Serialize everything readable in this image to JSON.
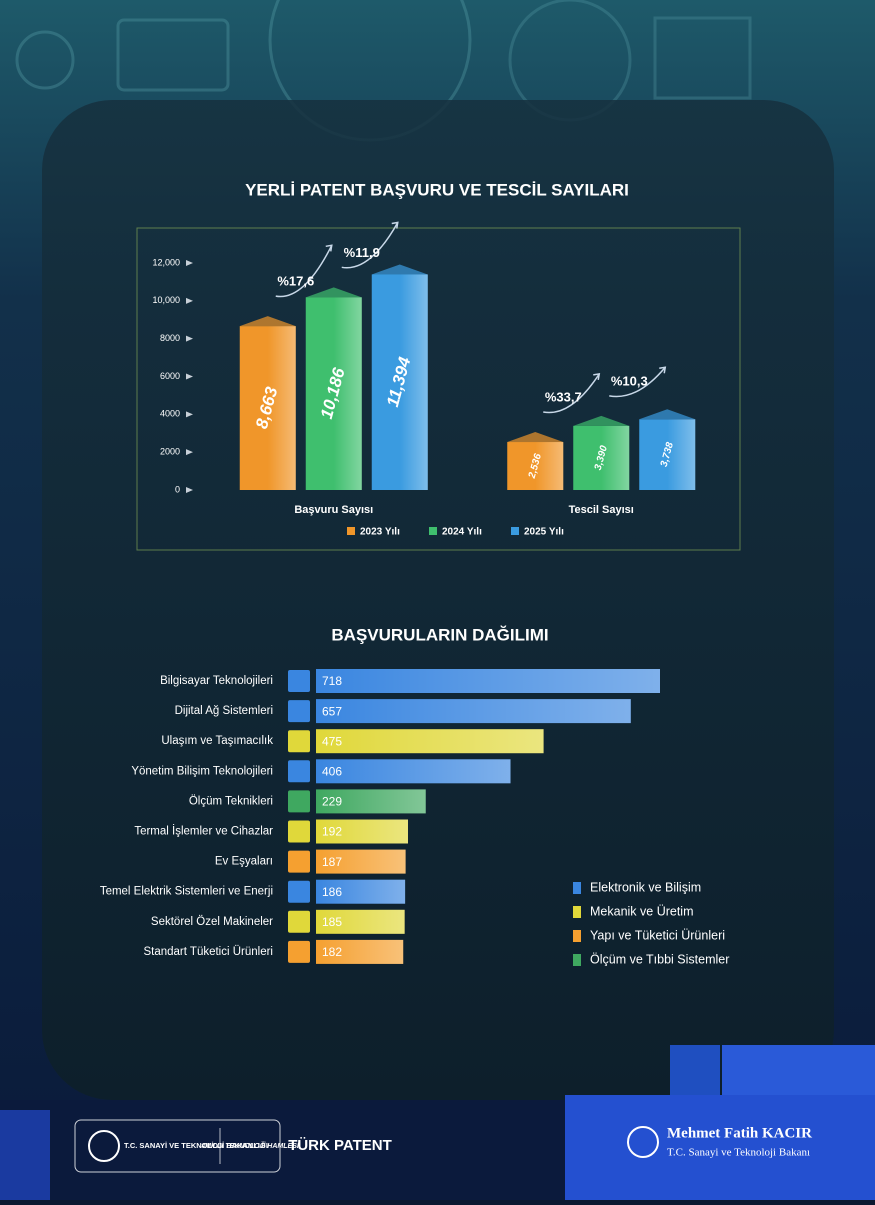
{
  "chart_data": [
    {
      "type": "bar3d",
      "title": "YERLİ PATENT BAŞVURU VE TESCİL SAYILARI",
      "categories": [
        "Başvuru Sayısı",
        "Tescil Sayısı"
      ],
      "series": [
        {
          "name": "2023 Yılı",
          "color": "#f0962a",
          "values": [
            8663,
            2536
          ],
          "value_labels": [
            "8,663",
            "2,536"
          ]
        },
        {
          "name": "2024 Yılı",
          "color": "#3fbf6e",
          "values": [
            10186,
            3390
          ],
          "value_labels": [
            "10,186",
            "3,390"
          ]
        },
        {
          "name": "2025 Yılı",
          "color": "#3a9be0",
          "values": [
            11394,
            3738
          ],
          "value_labels": [
            "11,394",
            "3,738"
          ]
        }
      ],
      "growth_labels": [
        "%17,6",
        "%11,9",
        "%33,7",
        "%10,3"
      ],
      "ylim": [
        0,
        12000
      ],
      "yticks": [
        0,
        2000,
        4000,
        6000,
        8000,
        {
          "value": 10000,
          "label": "10,000"
        },
        {
          "value": 12000,
          "label": "12,000"
        }
      ]
    },
    {
      "type": "hbar",
      "title": "BAŞVURULARIN DAĞILIMI",
      "categories": [
        "Bilgisayar Teknolojileri",
        "Dijital Ağ Sistemleri",
        "Ulaşım ve Taşımacılık",
        "Yönetim Bilişim Teknolojileri",
        "Ölçüm Teknikleri",
        "Termal İşlemler ve Cihazlar",
        "Ev Eşyaları",
        "Temel Elektrik Sistemleri ve Enerji",
        "Sektörel Özel Makineler",
        "Standart Tüketici Ürünleri"
      ],
      "values": [
        718,
        657,
        475,
        406,
        229,
        192,
        187,
        186,
        185,
        182
      ],
      "bar_colors": [
        "#3a86e0",
        "#3a86e0",
        "#e0d83a",
        "#3a86e0",
        "#3fa860",
        "#e0d83a",
        "#f5a030",
        "#3a86e0",
        "#e0d83a",
        "#f5a030"
      ],
      "legend": [
        {
          "name": "Elektronik ve Bilişim",
          "color": "#3a86e0"
        },
        {
          "name": "Mekanik ve Üretim",
          "color": "#e0d83a"
        },
        {
          "name": "Yapı ve Tüketici Ürünleri",
          "color": "#f5a030"
        },
        {
          "name": "Ölçüm ve Tıbbi Sistemler",
          "color": "#3fa860"
        }
      ]
    }
  ],
  "footer": {
    "ministry": "T.C. SANAYİ VE TEKNOLOJİ BAKANLIĞI",
    "campaign": "#MİLLİ TEKNOLOJİ HAMLESİ",
    "brand": "TÜRK PATENT",
    "minister_name": "Mehmet Fatih KACIR",
    "minister_title": "T.C. Sanayi ve Teknoloji Bakanı"
  }
}
